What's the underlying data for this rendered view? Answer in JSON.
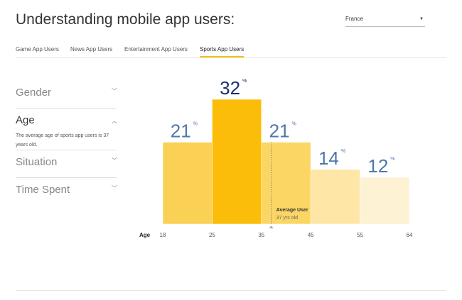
{
  "header": {
    "title": "Understanding mobile app users:",
    "country": "France"
  },
  "tabs": [
    "Game App Users",
    "News App Users",
    "Entertainment App Users",
    "Sports App Users"
  ],
  "active_tab": 3,
  "sidebar": {
    "items": [
      {
        "label": "Gender",
        "expanded": false
      },
      {
        "label": "Age",
        "expanded": true,
        "description": "The average age of sports app users is 37 years old."
      },
      {
        "label": "Situation",
        "expanded": false
      },
      {
        "label": "Time Spent",
        "expanded": false
      }
    ]
  },
  "chart_data": {
    "type": "histogram",
    "xlabel": "Age",
    "bins": [
      18,
      25,
      35,
      45,
      55,
      64
    ],
    "values": [
      21,
      32,
      21,
      14,
      12
    ],
    "value_unit": "%",
    "colors": [
      "#fad055",
      "#fbbd0a",
      "#fcd664",
      "#fde6a6",
      "#fef2d4"
    ],
    "label_colors": [
      "#4f77ab",
      "#1b2d6e",
      "#4f77ab",
      "#4f77ab",
      "#4f77ab"
    ],
    "marker": {
      "value": 37,
      "label": "Average User",
      "sublabel": "37 yrs old"
    }
  }
}
